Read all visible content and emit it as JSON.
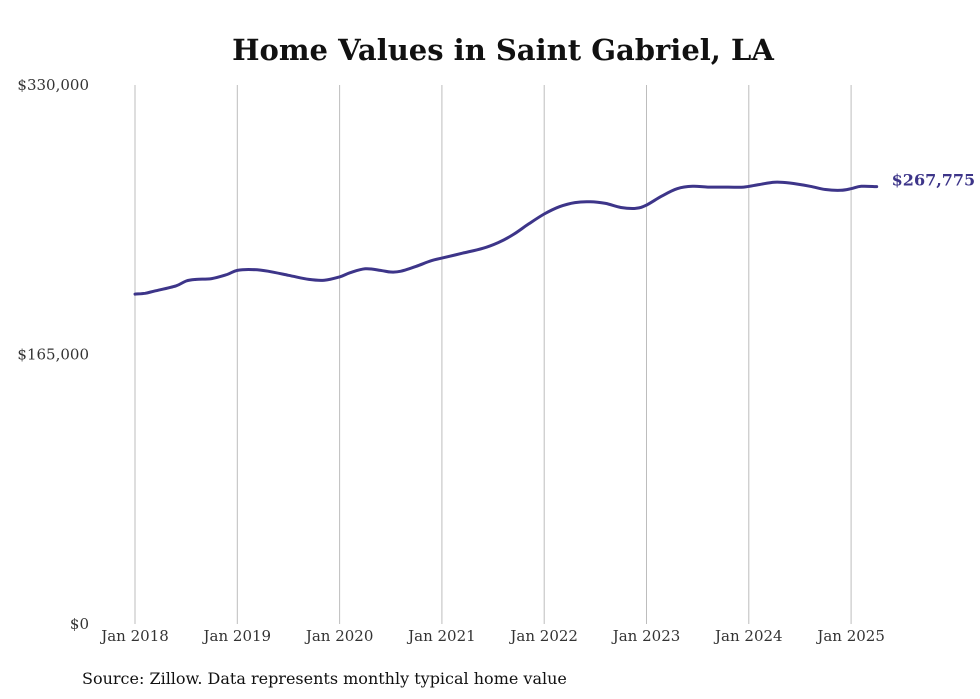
{
  "chart_data": {
    "type": "line",
    "title": "Home Values in Saint Gabriel, LA",
    "xlabel": "",
    "ylabel": "",
    "ylim": [
      0,
      330000
    ],
    "y_ticks": [
      {
        "value": 0,
        "label": "$0"
      },
      {
        "value": 165000,
        "label": "$165,000"
      },
      {
        "value": 330000,
        "label": "$330,000"
      }
    ],
    "x_ticks": [
      {
        "value": 2018,
        "label": "Jan 2018"
      },
      {
        "value": 2019,
        "label": "Jan 2019"
      },
      {
        "value": 2020,
        "label": "Jan 2020"
      },
      {
        "value": 2021,
        "label": "Jan 2021"
      },
      {
        "value": 2022,
        "label": "Jan 2022"
      },
      {
        "value": 2023,
        "label": "Jan 2023"
      },
      {
        "value": 2024,
        "label": "Jan 2024"
      },
      {
        "value": 2025,
        "label": "Jan 2025"
      }
    ],
    "grid": "vertical",
    "line_color": "#3d3589",
    "end_label": "$267,775",
    "series": [
      {
        "x": [
          2018.0,
          2018.1,
          2018.2,
          2018.4,
          2018.5,
          2018.6,
          2018.75,
          2018.9,
          2019.0,
          2019.15,
          2019.3,
          2019.5,
          2019.7,
          2019.85,
          2020.0,
          2020.1,
          2020.25,
          2020.4,
          2020.5,
          2020.6,
          2020.75,
          2020.9,
          2021.0,
          2021.2,
          2021.4,
          2021.55,
          2021.7,
          2021.85,
          2022.0,
          2022.15,
          2022.3,
          2022.45,
          2022.6,
          2022.75,
          2022.9,
          2023.0,
          2023.15,
          2023.3,
          2023.45,
          2023.6,
          2023.8,
          2023.95,
          2024.1,
          2024.25,
          2024.4,
          2024.6,
          2024.75,
          2024.9,
          2025.0,
          2025.1,
          2025.25
        ],
        "y": [
          202000,
          202500,
          204000,
          207000,
          210000,
          211000,
          211500,
          214000,
          216500,
          217000,
          216000,
          213500,
          211000,
          210500,
          212500,
          215000,
          217500,
          216500,
          215500,
          216000,
          219000,
          222500,
          224000,
          227000,
          230000,
          233500,
          238500,
          245000,
          251000,
          255500,
          258000,
          258500,
          257500,
          255000,
          254500,
          256500,
          262000,
          266500,
          268000,
          267500,
          267500,
          267500,
          269000,
          270500,
          270000,
          268000,
          266000,
          265500,
          266500,
          268000,
          267775
        ]
      }
    ],
    "source": "Source: Zillow. Data represents monthly typical home value"
  }
}
